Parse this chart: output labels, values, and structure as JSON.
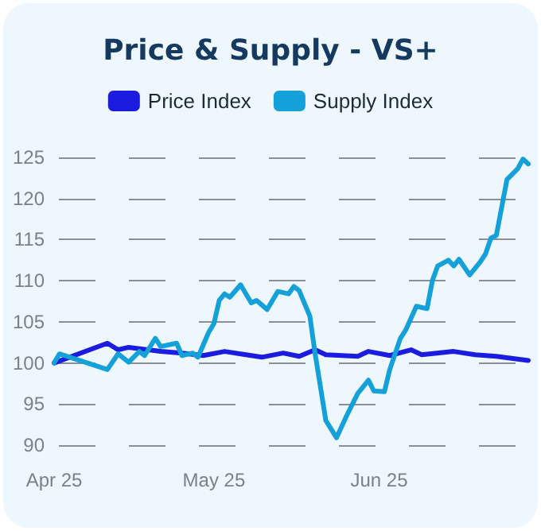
{
  "chart_data": {
    "type": "line",
    "title": "Price & Supply - VS+",
    "xlim": [
      "2025-04-01",
      "2025-06-29"
    ],
    "xticks": [
      {
        "value": "2025-04-01",
        "label": "Apr 25"
      },
      {
        "value": "2025-05-01",
        "label": "May 25"
      },
      {
        "value": "2025-06-01",
        "label": "Jun 25"
      }
    ],
    "ylim": [
      90,
      125
    ],
    "yticks": [
      90,
      95,
      100,
      105,
      110,
      115,
      120,
      125
    ],
    "grid": "y",
    "legend": "top",
    "marker": "none",
    "line_style": "solid",
    "series": [
      {
        "name": "Price Index",
        "color": "#1c1ce0",
        "x": [
          "2025-04-01",
          "2025-04-11",
          "2025-04-13",
          "2025-04-15",
          "2025-04-21",
          "2025-04-25",
          "2025-04-29",
          "2025-05-03",
          "2025-05-07",
          "2025-05-10",
          "2025-05-14",
          "2025-05-17",
          "2025-05-20",
          "2025-05-22",
          "2025-05-28",
          "2025-05-30",
          "2025-06-03",
          "2025-06-07",
          "2025-06-09",
          "2025-06-15",
          "2025-06-19",
          "2025-06-23",
          "2025-06-29"
        ],
        "values": [
          100,
          102.4,
          101.6,
          101.9,
          101.4,
          101.2,
          100.9,
          101.4,
          101,
          100.7,
          101.2,
          100.8,
          101.6,
          101,
          100.8,
          101.4,
          100.9,
          101.6,
          101,
          101.4,
          101,
          100.8,
          100.3
        ]
      },
      {
        "name": "Supply Index",
        "color": "#14a0d8",
        "x": [
          "2025-04-01",
          "2025-04-02",
          "2025-04-11",
          "2025-04-13",
          "2025-04-15",
          "2025-04-17",
          "2025-04-18",
          "2025-04-20",
          "2025-04-21",
          "2025-04-24",
          "2025-04-25",
          "2025-04-27",
          "2025-04-28",
          "2025-04-30",
          "2025-05-01",
          "2025-05-02",
          "2025-05-03",
          "2025-05-04",
          "2025-05-06",
          "2025-05-08",
          "2025-05-09",
          "2025-05-11",
          "2025-05-13",
          "2025-05-15",
          "2025-05-16",
          "2025-05-17",
          "2025-05-19",
          "2025-05-20",
          "2025-05-22",
          "2025-05-24",
          "2025-05-26",
          "2025-05-28",
          "2025-05-30",
          "2025-05-31",
          "2025-06-02",
          "2025-06-03",
          "2025-06-05",
          "2025-06-06",
          "2025-06-08",
          "2025-06-10",
          "2025-06-11",
          "2025-06-12",
          "2025-06-14",
          "2025-06-15",
          "2025-06-16",
          "2025-06-18",
          "2025-06-20",
          "2025-06-21",
          "2025-06-22",
          "2025-06-23",
          "2025-06-25",
          "2025-06-27",
          "2025-06-28",
          "2025-06-29"
        ],
        "values": [
          100,
          101.1,
          99.2,
          101.1,
          100.1,
          101.4,
          100.9,
          103,
          102,
          102.4,
          100.9,
          101.2,
          100.7,
          103.7,
          104.8,
          107.6,
          108.4,
          108,
          109.5,
          107.3,
          107.6,
          106.5,
          108.7,
          108.4,
          109.3,
          108.8,
          105.7,
          101.1,
          93,
          90.9,
          93.7,
          96.3,
          97.9,
          96.6,
          96.5,
          99.2,
          103,
          104,
          106.9,
          106.6,
          110,
          111.8,
          112.5,
          111.8,
          112.6,
          110.7,
          112.3,
          113.3,
          115.2,
          115.5,
          122.3,
          123.6,
          124.8,
          124.2
        ]
      }
    ]
  }
}
